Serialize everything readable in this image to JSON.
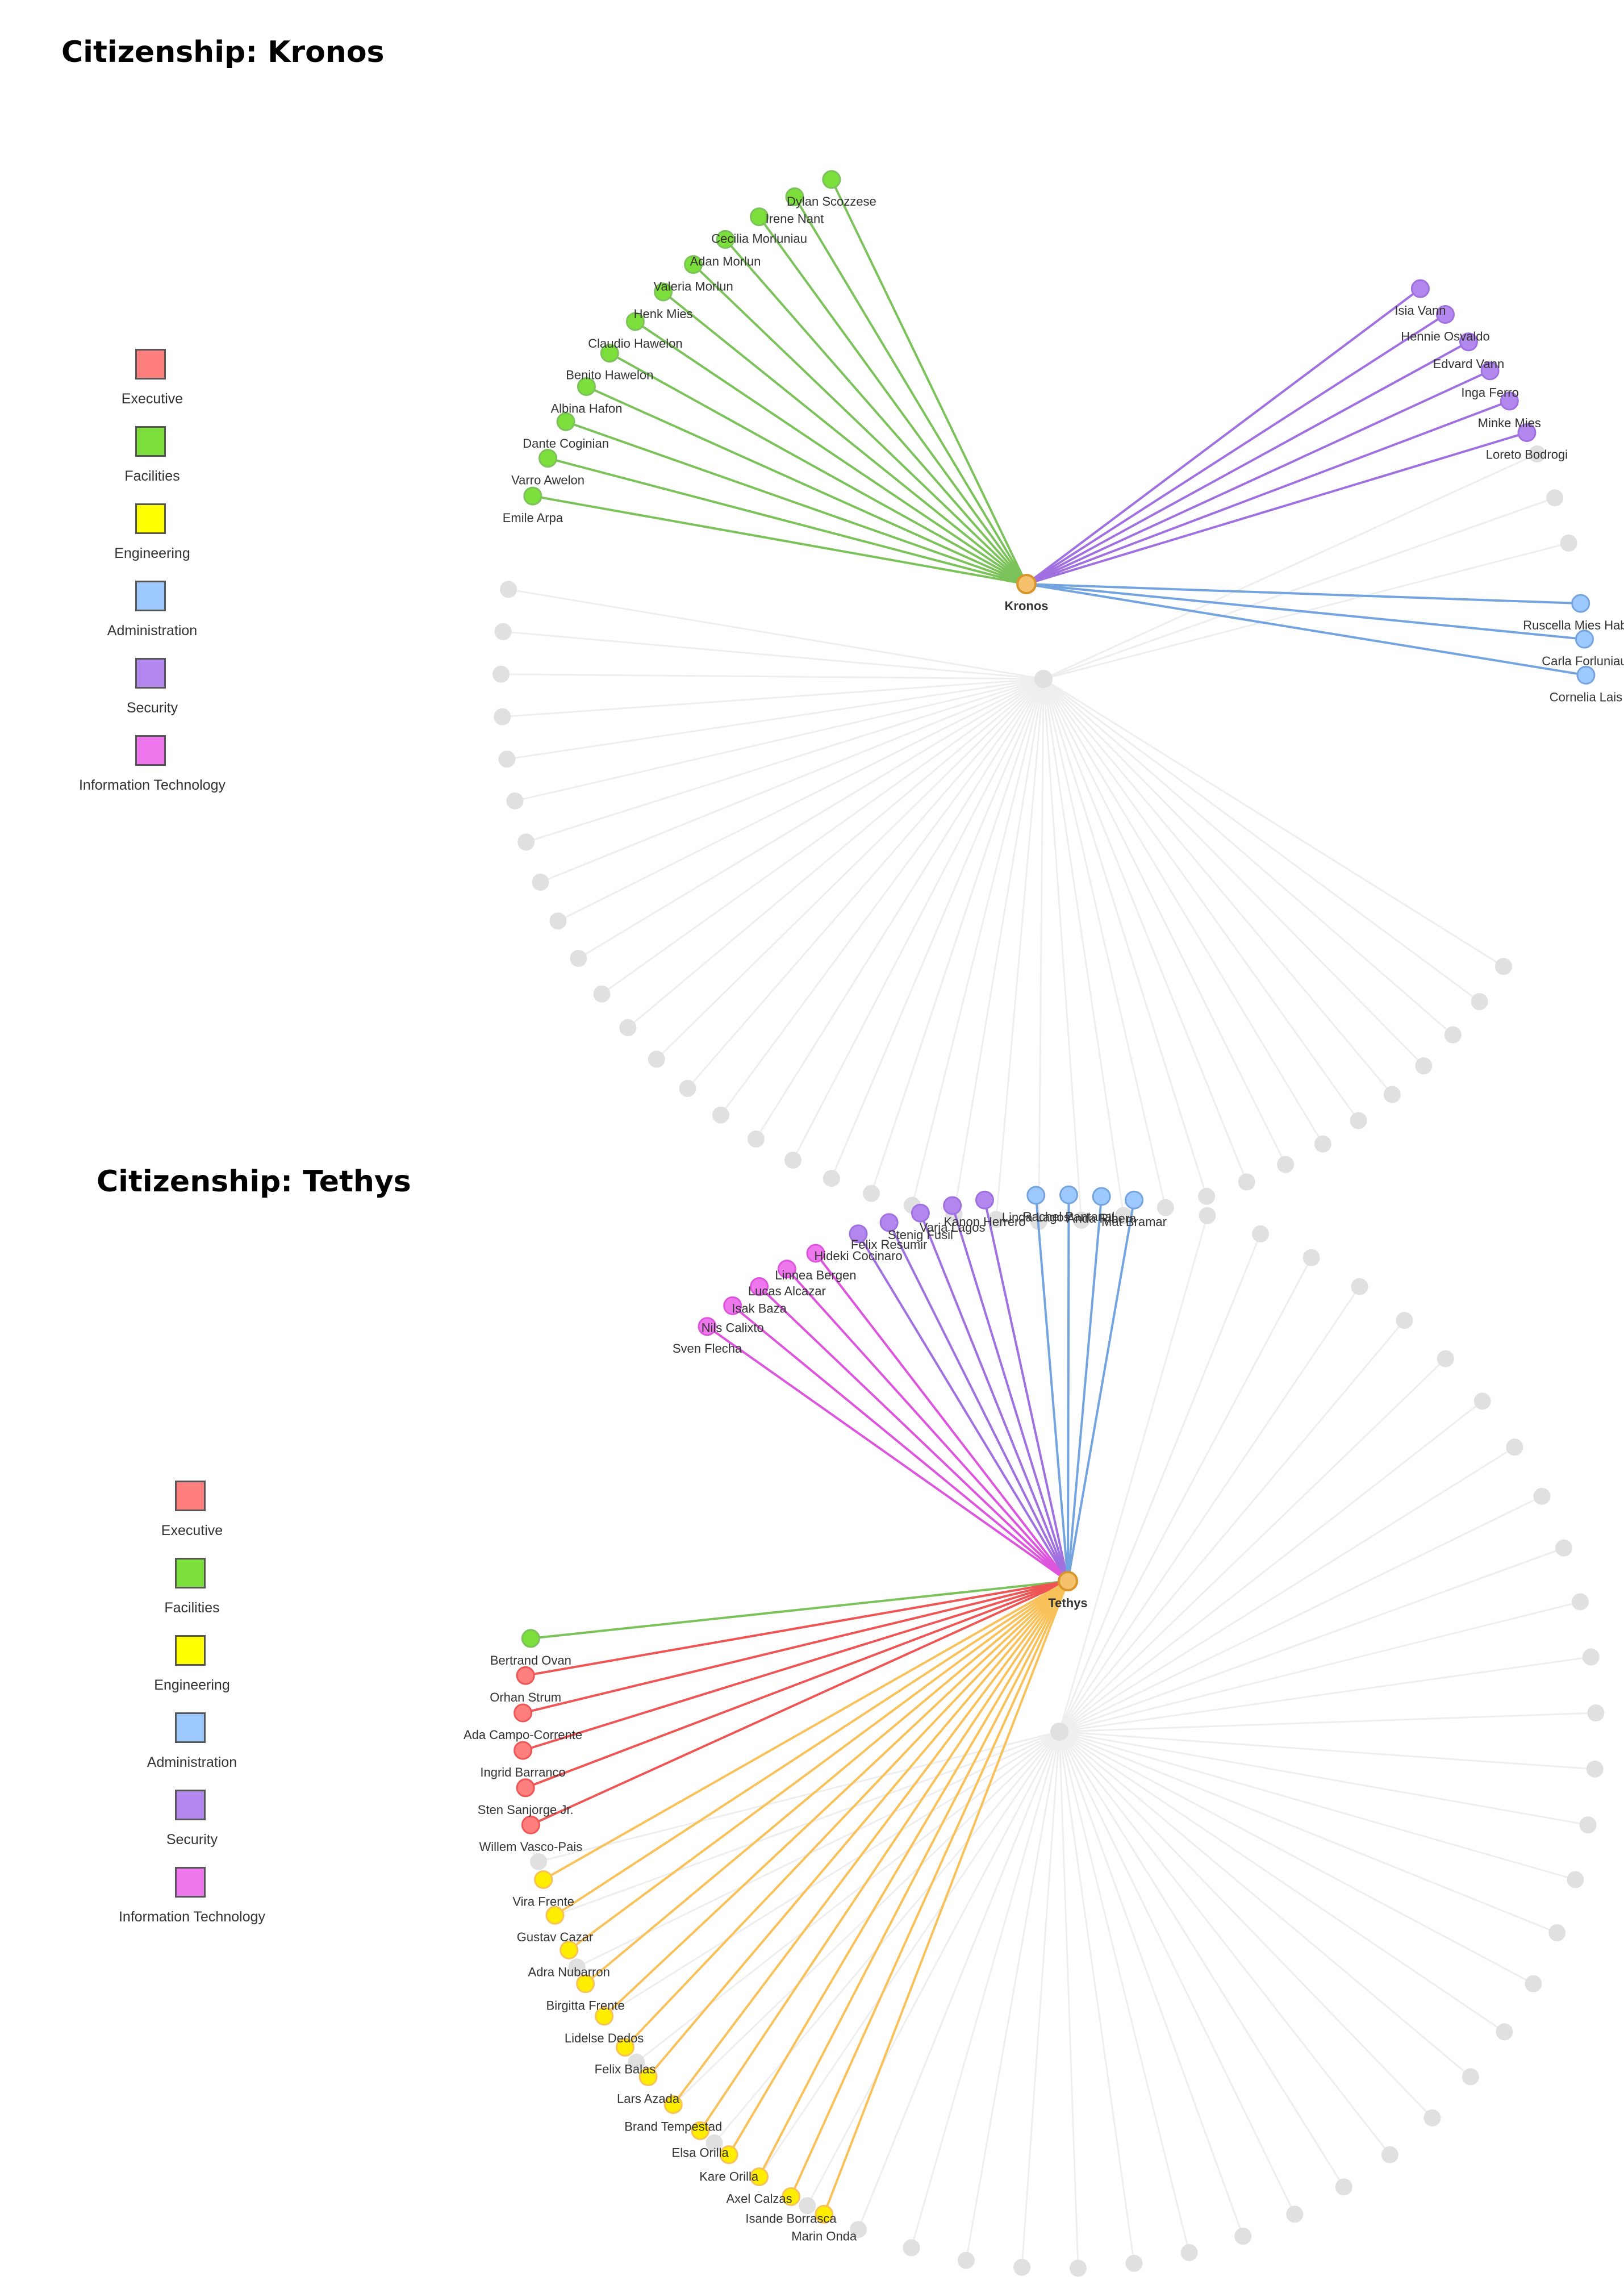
{
  "legend": [
    {
      "label": "Executive",
      "color": "#ff7f7f"
    },
    {
      "label": "Facilities",
      "color": "#7ddf3c"
    },
    {
      "label": "Engineering",
      "color": "#ffff00"
    },
    {
      "label": "Administration",
      "color": "#9ec9ff"
    },
    {
      "label": "Security",
      "color": "#b388ee"
    },
    {
      "label": "Information Technology",
      "color": "#ee77ee"
    }
  ],
  "department_colors": {
    "Executive": {
      "node": "#ff7f7f",
      "edge": "#ee5555"
    },
    "Facilities": {
      "node": "#7ddf3c",
      "edge": "#7cc25a"
    },
    "Engineering": {
      "node": "#ffee00",
      "edge": "#f8c15a"
    },
    "Administration": {
      "node": "#9ec9ff",
      "edge": "#74a4e0"
    },
    "Security": {
      "node": "#b388ee",
      "edge": "#a070e0"
    },
    "Information Technology": {
      "node": "#ee77ee",
      "edge": "#dd55dd"
    },
    "hub": {
      "node": "#f5c16c",
      "stroke": "#d9952a"
    },
    "inactive": {
      "node": "#e0e0e0",
      "edge": "#eeeeee"
    }
  },
  "graphs": [
    {
      "title": "Citizenship: Kronos",
      "hub_label": "Kronos",
      "members": [
        {
          "name": "Dylan Scozzese",
          "dept": "Facilities"
        },
        {
          "name": "Irene Nant",
          "dept": "Facilities"
        },
        {
          "name": "Cecilia Morluniau",
          "dept": "Facilities"
        },
        {
          "name": "Adan Morlun",
          "dept": "Facilities"
        },
        {
          "name": "Valeria Morlun",
          "dept": "Facilities"
        },
        {
          "name": "Henk Mies",
          "dept": "Facilities"
        },
        {
          "name": "Claudio Hawelon",
          "dept": "Facilities"
        },
        {
          "name": "Benito Hawelon",
          "dept": "Facilities"
        },
        {
          "name": "Albina Hafon",
          "dept": "Facilities"
        },
        {
          "name": "Dante Coginian",
          "dept": "Facilities"
        },
        {
          "name": "Varro Awelon",
          "dept": "Facilities"
        },
        {
          "name": "Emile Arpa",
          "dept": "Facilities"
        },
        {
          "name": "Isia Vann",
          "dept": "Security"
        },
        {
          "name": "Hennie Osvaldo",
          "dept": "Security"
        },
        {
          "name": "Edvard Vann",
          "dept": "Security"
        },
        {
          "name": "Inga Ferro",
          "dept": "Security"
        },
        {
          "name": "Minke Mies",
          "dept": "Security"
        },
        {
          "name": "Loreto Bodrogi",
          "dept": "Security"
        },
        {
          "name": "Ruscella Mies Haber",
          "dept": "Administration"
        },
        {
          "name": "Carla Forluniau",
          "dept": "Administration"
        },
        {
          "name": "Cornelia Lais",
          "dept": "Administration"
        }
      ]
    },
    {
      "title": "Citizenship: Tethys",
      "hub_label": "Tethys",
      "members": [
        {
          "name": "Linnea Bergen",
          "dept": "Information Technology"
        },
        {
          "name": "Lucas Alcazar",
          "dept": "Information Technology"
        },
        {
          "name": "Isak Baza",
          "dept": "Information Technology"
        },
        {
          "name": "Nils Calixto",
          "dept": "Information Technology"
        },
        {
          "name": "Sven Flecha",
          "dept": "Information Technology"
        },
        {
          "name": "Kanon Herrero",
          "dept": "Security"
        },
        {
          "name": "Varja Lagos",
          "dept": "Security"
        },
        {
          "name": "Stenig Fusil",
          "dept": "Security"
        },
        {
          "name": "Felix Resumir",
          "dept": "Security"
        },
        {
          "name": "Hideki Cocinaro",
          "dept": "Security"
        },
        {
          "name": "Mat Bramar",
          "dept": "Administration"
        },
        {
          "name": "Anda Ribera",
          "dept": "Administration"
        },
        {
          "name": "Rachel Pantanal",
          "dept": "Administration"
        },
        {
          "name": "Linda Lagos",
          "dept": "Administration"
        },
        {
          "name": "Bertrand Ovan",
          "dept": "Facilities"
        },
        {
          "name": "Orhan Strum",
          "dept": "Executive"
        },
        {
          "name": "Ada Campo-Corrente",
          "dept": "Executive"
        },
        {
          "name": "Ingrid Barranco",
          "dept": "Executive"
        },
        {
          "name": "Sten Sanjorge Jr.",
          "dept": "Executive"
        },
        {
          "name": "Willem Vasco-Pais",
          "dept": "Executive"
        },
        {
          "name": "Vira Frente",
          "dept": "Engineering"
        },
        {
          "name": "Gustav Cazar",
          "dept": "Engineering"
        },
        {
          "name": "Adra Nubarron",
          "dept": "Engineering"
        },
        {
          "name": "Birgitta Frente",
          "dept": "Engineering"
        },
        {
          "name": "Lidelse Dedos",
          "dept": "Engineering"
        },
        {
          "name": "Felix Balas",
          "dept": "Engineering"
        },
        {
          "name": "Lars Azada",
          "dept": "Engineering"
        },
        {
          "name": "Brand Tempestad",
          "dept": "Engineering"
        },
        {
          "name": "Elsa Orilla",
          "dept": "Engineering"
        },
        {
          "name": "Kare Orilla",
          "dept": "Engineering"
        },
        {
          "name": "Axel Calzas",
          "dept": "Engineering"
        },
        {
          "name": "Isande Borrasca",
          "dept": "Engineering"
        },
        {
          "name": "Marin Onda",
          "dept": "Engineering"
        }
      ]
    }
  ]
}
